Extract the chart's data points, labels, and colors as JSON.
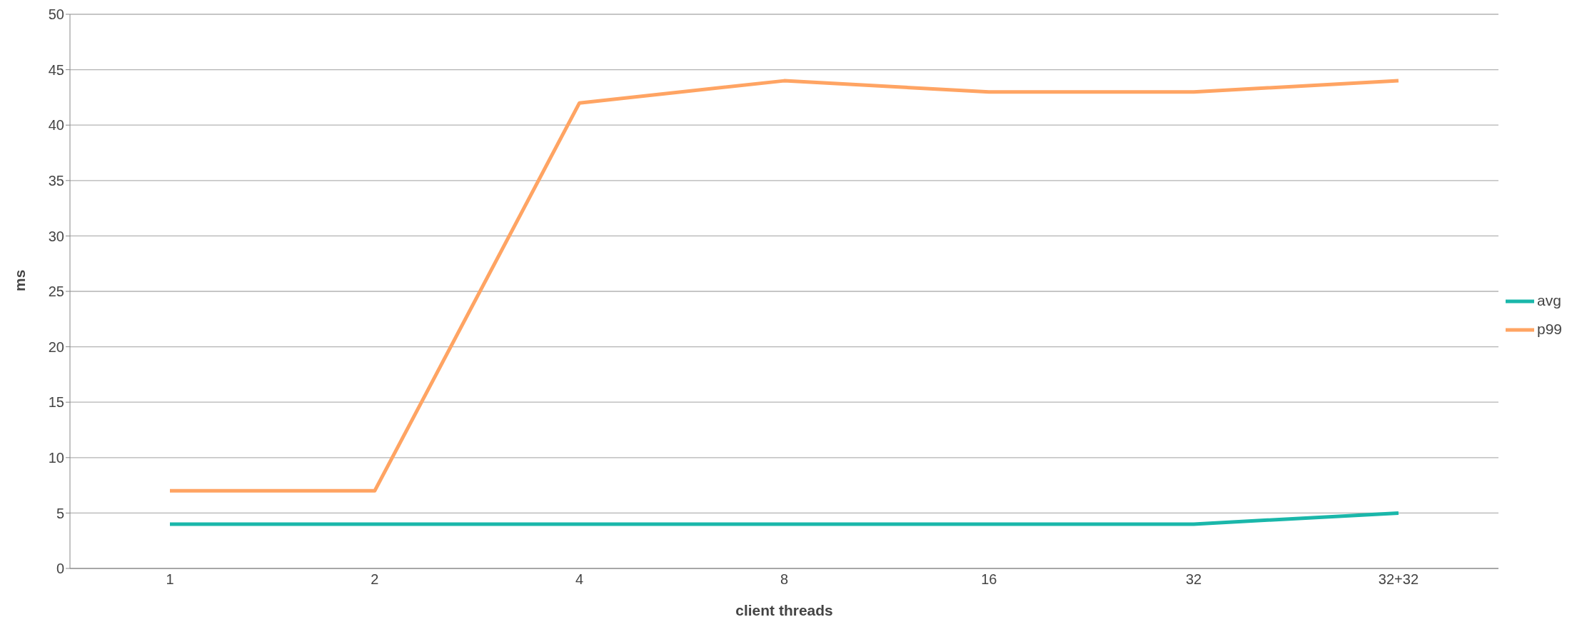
{
  "chart_data": {
    "type": "line",
    "xlabel": "client threads",
    "ylabel": "ms",
    "categories": [
      "1",
      "2",
      "4",
      "8",
      "16",
      "32",
      "32+32"
    ],
    "series": [
      {
        "name": "avg",
        "color": "#1ab7aa",
        "values": [
          4,
          4,
          4,
          4,
          4,
          4,
          5
        ]
      },
      {
        "name": "p99",
        "color": "#ffa463",
        "values": [
          7,
          7,
          42,
          44,
          43,
          43,
          44
        ]
      }
    ],
    "ylim": [
      0,
      50
    ],
    "yticks": [
      0,
      5,
      10,
      15,
      20,
      25,
      30,
      35,
      40,
      45,
      50
    ],
    "grid": "y",
    "legend": "right",
    "marker": "none",
    "line_style": "solid"
  }
}
